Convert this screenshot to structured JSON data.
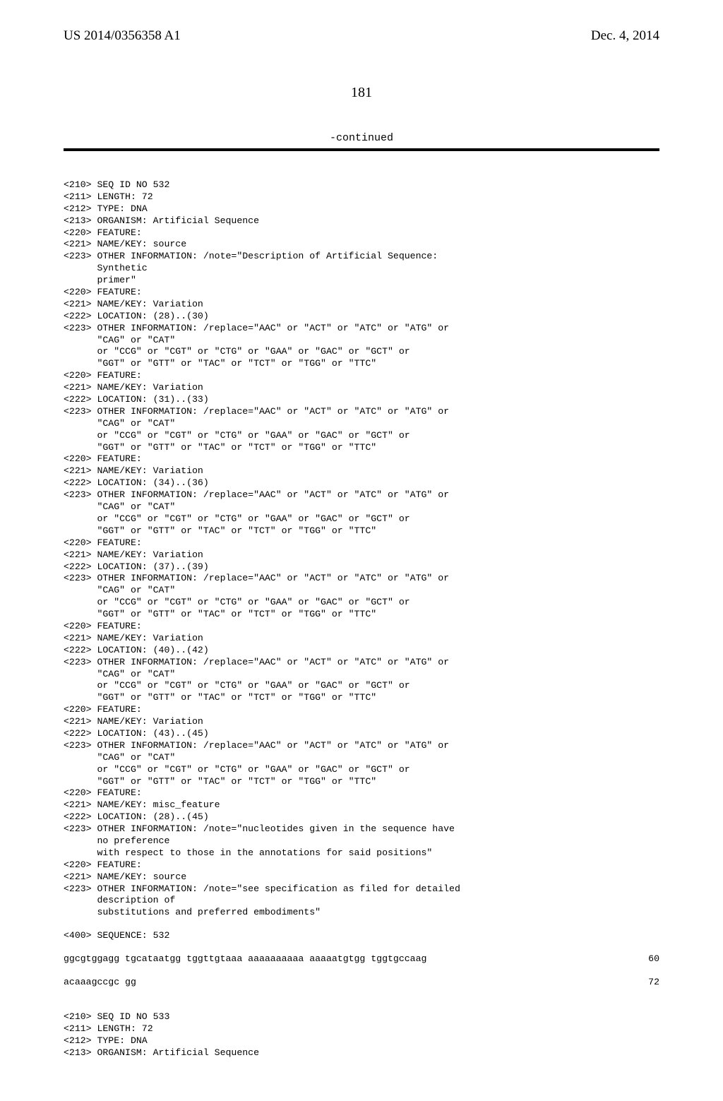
{
  "header": {
    "left": "US 2014/0356358 A1",
    "right": "Dec. 4, 2014"
  },
  "pagenum": "181",
  "continued": "-continued",
  "lines": {
    "l01": "<210> SEQ ID NO 532",
    "l02": "<211> LENGTH: 72",
    "l03": "<212> TYPE: DNA",
    "l04": "<213> ORGANISM: Artificial Sequence",
    "l05": "<220> FEATURE:",
    "l06": "<221> NAME/KEY: source",
    "l07": "<223> OTHER INFORMATION: /note=\"Description of Artificial Sequence:",
    "l08": "      Synthetic",
    "l09": "      primer\"",
    "l10": "<220> FEATURE:",
    "l11": "<221> NAME/KEY: Variation",
    "l12": "<222> LOCATION: (28)..(30)",
    "l13": "<223> OTHER INFORMATION: /replace=\"AAC\" or \"ACT\" or \"ATC\" or \"ATG\" or",
    "l14": "      \"CAG\" or \"CAT\"",
    "l15": "      or \"CCG\" or \"CGT\" or \"CTG\" or \"GAA\" or \"GAC\" or \"GCT\" or",
    "l16": "      \"GGT\" or \"GTT\" or \"TAC\" or \"TCT\" or \"TGG\" or \"TTC\"",
    "l17": "<220> FEATURE:",
    "l18": "<221> NAME/KEY: Variation",
    "l19": "<222> LOCATION: (31)..(33)",
    "l20": "<223> OTHER INFORMATION: /replace=\"AAC\" or \"ACT\" or \"ATC\" or \"ATG\" or",
    "l21": "      \"CAG\" or \"CAT\"",
    "l22": "      or \"CCG\" or \"CGT\" or \"CTG\" or \"GAA\" or \"GAC\" or \"GCT\" or",
    "l23": "      \"GGT\" or \"GTT\" or \"TAC\" or \"TCT\" or \"TGG\" or \"TTC\"",
    "l24": "<220> FEATURE:",
    "l25": "<221> NAME/KEY: Variation",
    "l26": "<222> LOCATION: (34)..(36)",
    "l27": "<223> OTHER INFORMATION: /replace=\"AAC\" or \"ACT\" or \"ATC\" or \"ATG\" or",
    "l28": "      \"CAG\" or \"CAT\"",
    "l29": "      or \"CCG\" or \"CGT\" or \"CTG\" or \"GAA\" or \"GAC\" or \"GCT\" or",
    "l30": "      \"GGT\" or \"GTT\" or \"TAC\" or \"TCT\" or \"TGG\" or \"TTC\"",
    "l31": "<220> FEATURE:",
    "l32": "<221> NAME/KEY: Variation",
    "l33": "<222> LOCATION: (37)..(39)",
    "l34": "<223> OTHER INFORMATION: /replace=\"AAC\" or \"ACT\" or \"ATC\" or \"ATG\" or",
    "l35": "      \"CAG\" or \"CAT\"",
    "l36": "      or \"CCG\" or \"CGT\" or \"CTG\" or \"GAA\" or \"GAC\" or \"GCT\" or",
    "l37": "      \"GGT\" or \"GTT\" or \"TAC\" or \"TCT\" or \"TGG\" or \"TTC\"",
    "l38": "<220> FEATURE:",
    "l39": "<221> NAME/KEY: Variation",
    "l40": "<222> LOCATION: (40)..(42)",
    "l41": "<223> OTHER INFORMATION: /replace=\"AAC\" or \"ACT\" or \"ATC\" or \"ATG\" or",
    "l42": "      \"CAG\" or \"CAT\"",
    "l43": "      or \"CCG\" or \"CGT\" or \"CTG\" or \"GAA\" or \"GAC\" or \"GCT\" or",
    "l44": "      \"GGT\" or \"GTT\" or \"TAC\" or \"TCT\" or \"TGG\" or \"TTC\"",
    "l45": "<220> FEATURE:",
    "l46": "<221> NAME/KEY: Variation",
    "l47": "<222> LOCATION: (43)..(45)",
    "l48": "<223> OTHER INFORMATION: /replace=\"AAC\" or \"ACT\" or \"ATC\" or \"ATG\" or",
    "l49": "      \"CAG\" or \"CAT\"",
    "l50": "      or \"CCG\" or \"CGT\" or \"CTG\" or \"GAA\" or \"GAC\" or \"GCT\" or",
    "l51": "      \"GGT\" or \"GTT\" or \"TAC\" or \"TCT\" or \"TGG\" or \"TTC\"",
    "l52": "<220> FEATURE:",
    "l53": "<221> NAME/KEY: misc_feature",
    "l54": "<222> LOCATION: (28)..(45)",
    "l55": "<223> OTHER INFORMATION: /note=\"nucleotides given in the sequence have",
    "l56": "      no preference",
    "l57": "      with respect to those in the annotations for said positions\"",
    "l58": "<220> FEATURE:",
    "l59": "<221> NAME/KEY: source",
    "l60": "<223> OTHER INFORMATION: /note=\"see specification as filed for detailed",
    "l61": "      description of",
    "l62": "      substitutions and preferred embodiments\"",
    "l63": "<400> SEQUENCE: 532",
    "seq1l": "ggcgtggagg tgcataatgg tggttgtaaa aaaaaaaaaa aaaaatgtgg tggtgccaag",
    "seq1r": "60",
    "seq2l": "acaaagccgc gg",
    "seq2r": "72",
    "l70": "<210> SEQ ID NO 533",
    "l71": "<211> LENGTH: 72",
    "l72": "<212> TYPE: DNA",
    "l73": "<213> ORGANISM: Artificial Sequence"
  }
}
